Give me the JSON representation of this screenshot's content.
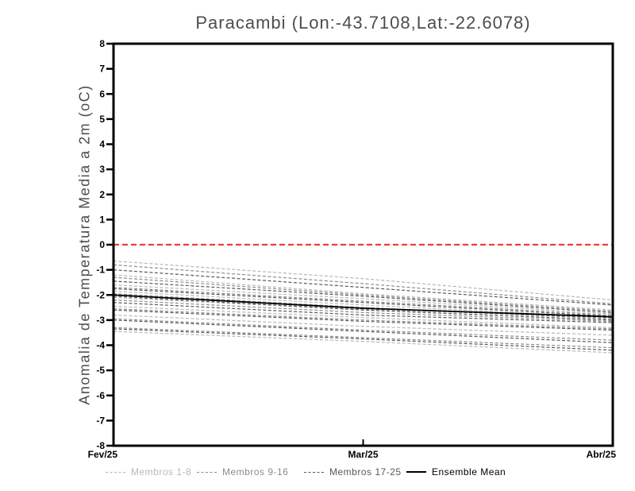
{
  "chart_data": {
    "type": "line",
    "title": "Paracambi (Lon:-43.7108,Lat:-22.6078)",
    "ylabel": "Anomalia de Temperatura Media a 2m (oC)",
    "xlabel": "",
    "x_categories": [
      "Fev/25",
      "Mar/25",
      "Abr/25"
    ],
    "ylim": [
      -8,
      8
    ],
    "ytick_step": 1,
    "yticks": [
      -8,
      -7,
      -6,
      -5,
      -4,
      -3,
      -2,
      -1,
      0,
      1,
      2,
      3,
      4,
      5,
      6,
      7,
      8
    ],
    "grid": false,
    "legend_position": "bottom",
    "background": "#ffffff",
    "axis_color": "#000000",
    "zero_line": {
      "value": 0,
      "color": "#f23b3b",
      "style": "dashed"
    },
    "groups": [
      {
        "name": "Membros 1-8",
        "color": "#b7b7b7",
        "style": "dashed",
        "members": [
          [
            -0.65,
            -1.35,
            -2.2
          ],
          [
            -1.2,
            -1.95,
            -2.6
          ],
          [
            -1.6,
            -2.15,
            -2.75
          ],
          [
            -1.85,
            -2.4,
            -2.9
          ],
          [
            -2.1,
            -2.6,
            -3.0
          ],
          [
            -2.45,
            -2.9,
            -3.3
          ],
          [
            -2.8,
            -3.25,
            -3.6
          ],
          [
            -3.45,
            -3.85,
            -4.3
          ]
        ]
      },
      {
        "name": "Membros 9-16",
        "color": "#8c8c8c",
        "style": "dashed",
        "members": [
          [
            -0.8,
            -1.55,
            -2.35
          ],
          [
            -1.3,
            -2.0,
            -2.65
          ],
          [
            -1.7,
            -2.25,
            -2.8
          ],
          [
            -1.95,
            -2.5,
            -2.95
          ],
          [
            -2.2,
            -2.7,
            -3.05
          ],
          [
            -2.55,
            -3.0,
            -3.35
          ],
          [
            -2.95,
            -3.4,
            -3.8
          ],
          [
            -3.3,
            -3.7,
            -4.1
          ]
        ]
      },
      {
        "name": "Membros 17-25",
        "color": "#585858",
        "style": "dashed",
        "members": [
          [
            -1.0,
            -1.7,
            -2.4
          ],
          [
            -1.45,
            -2.05,
            -2.7
          ],
          [
            -1.75,
            -2.3,
            -2.85
          ],
          [
            -2.0,
            -2.55,
            -2.9
          ],
          [
            -2.3,
            -2.8,
            -3.1
          ],
          [
            -2.6,
            -3.05,
            -3.4
          ],
          [
            -3.0,
            -3.45,
            -3.9
          ],
          [
            -3.35,
            -3.75,
            -4.2
          ],
          [
            -2.05,
            -2.6,
            -3.0
          ]
        ]
      }
    ],
    "ensemble_mean": {
      "name": "Ensemble Mean",
      "color": "#000000",
      "style": "solid",
      "values": [
        -2.0,
        -2.53,
        -2.87
      ]
    }
  }
}
